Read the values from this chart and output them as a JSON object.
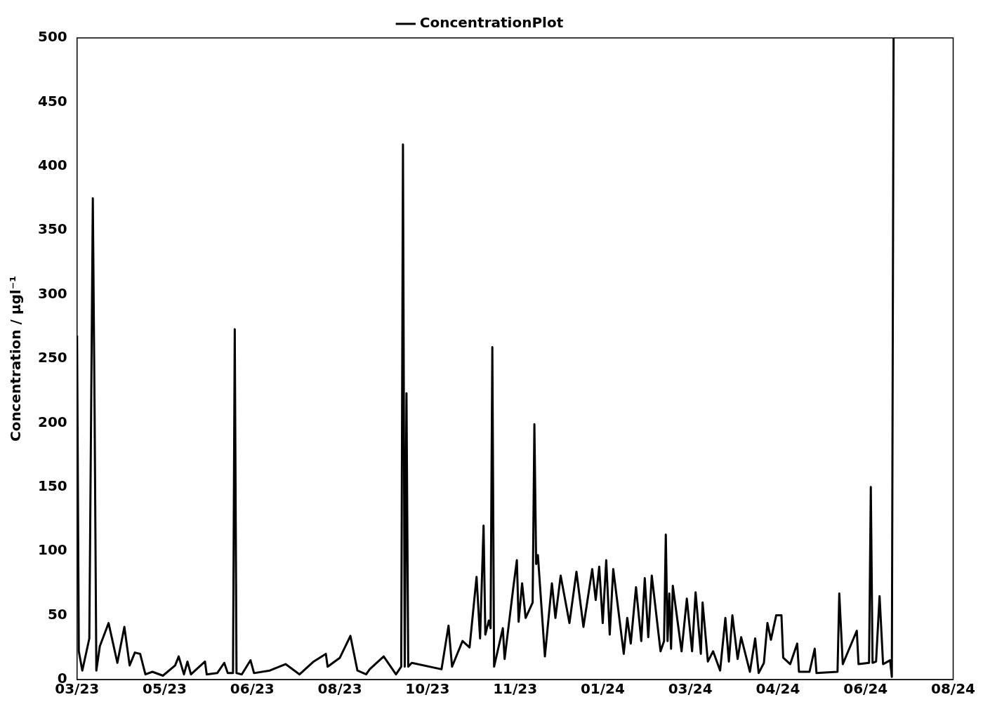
{
  "chart_data": {
    "type": "line",
    "ylabel": "Concentration / μgl⁻¹",
    "legend": "top",
    "grid": false,
    "marker": "none",
    "line_style": "solid",
    "ylim": [
      0,
      500
    ],
    "yticks": [
      0,
      50,
      100,
      150,
      200,
      250,
      300,
      350,
      400,
      450,
      500
    ],
    "xlim": [
      "2023-03-20",
      "2024-08-01"
    ],
    "xticks": [
      {
        "value": "2023-03-20",
        "label": "03/23"
      },
      {
        "value": "2023-05-09",
        "label": "05/23"
      },
      {
        "value": "2023-06-28",
        "label": "06/23"
      },
      {
        "value": "2023-08-17",
        "label": "08/23"
      },
      {
        "value": "2023-10-06",
        "label": "10/23"
      },
      {
        "value": "2023-11-25",
        "label": "11/23"
      },
      {
        "value": "2024-01-14",
        "label": "01/24"
      },
      {
        "value": "2024-03-04",
        "label": "03/24"
      },
      {
        "value": "2024-04-23",
        "label": "04/24"
      },
      {
        "value": "2024-06-12",
        "label": "06/24"
      },
      {
        "value": "2024-08-01",
        "label": "08/24"
      }
    ],
    "x": [
      "2023-03-20",
      "2023-03-21",
      "2023-03-23",
      "2023-03-27",
      "2023-03-29",
      "2023-03-30",
      "2023-03-31",
      "2023-04-02",
      "2023-04-07",
      "2023-04-12",
      "2023-04-16",
      "2023-04-19",
      "2023-04-22",
      "2023-04-25",
      "2023-04-28",
      "2023-05-02",
      "2023-05-08",
      "2023-05-15",
      "2023-05-17",
      "2023-05-20",
      "2023-05-22",
      "2023-05-24",
      "2023-06-01",
      "2023-06-02",
      "2023-06-08",
      "2023-06-12",
      "2023-06-14",
      "2023-06-17",
      "2023-06-18",
      "2023-06-19",
      "2023-06-22",
      "2023-06-27",
      "2023-06-29",
      "2023-07-08",
      "2023-07-17",
      "2023-07-25",
      "2023-08-02",
      "2023-08-09",
      "2023-08-10",
      "2023-08-17",
      "2023-08-23",
      "2023-08-27",
      "2023-09-01",
      "2023-09-03",
      "2023-09-11",
      "2023-09-18",
      "2023-09-21",
      "2023-09-22",
      "2023-09-23",
      "2023-09-24",
      "2023-09-25",
      "2023-09-27",
      "2023-10-14",
      "2023-10-18",
      "2023-10-20",
      "2023-10-26",
      "2023-10-30",
      "2023-11-03",
      "2023-11-05",
      "2023-11-07",
      "2023-11-08",
      "2023-11-10",
      "2023-11-11",
      "2023-11-12",
      "2023-11-13",
      "2023-11-18",
      "2023-11-19",
      "2023-11-24",
      "2023-11-26",
      "2023-11-27",
      "2023-11-29",
      "2023-12-01",
      "2023-12-05",
      "2023-12-06",
      "2023-12-07",
      "2023-12-08",
      "2023-12-12",
      "2023-12-16",
      "2023-12-18",
      "2023-12-21",
      "2023-12-26",
      "2023-12-30",
      "2024-01-03",
      "2024-01-08",
      "2024-01-10",
      "2024-01-12",
      "2024-01-14",
      "2024-01-16",
      "2024-01-18",
      "2024-01-20",
      "2024-01-26",
      "2024-01-28",
      "2024-01-30",
      "2024-02-02",
      "2024-02-05",
      "2024-02-07",
      "2024-02-09",
      "2024-02-11",
      "2024-02-16",
      "2024-02-18",
      "2024-02-19",
      "2024-02-20",
      "2024-02-21",
      "2024-02-22",
      "2024-02-23",
      "2024-02-28",
      "2024-03-02",
      "2024-03-05",
      "2024-03-07",
      "2024-03-10",
      "2024-03-11",
      "2024-03-14",
      "2024-03-17",
      "2024-03-21",
      "2024-03-24",
      "2024-03-26",
      "2024-03-28",
      "2024-03-31",
      "2024-04-02",
      "2024-04-07",
      "2024-04-10",
      "2024-04-12",
      "2024-04-15",
      "2024-04-17",
      "2024-04-19",
      "2024-04-22",
      "2024-04-25",
      "2024-04-26",
      "2024-04-30",
      "2024-05-04",
      "2024-05-05",
      "2024-05-11",
      "2024-05-14",
      "2024-05-15",
      "2024-05-27",
      "2024-05-28",
      "2024-05-30",
      "2024-06-07",
      "2024-06-08",
      "2024-06-14",
      "2024-06-15",
      "2024-06-16",
      "2024-06-18",
      "2024-06-20",
      "2024-06-22",
      "2024-06-26",
      "2024-06-27",
      "2024-06-28"
    ],
    "series": [
      {
        "name": "ConcentrationPlot",
        "color": "#000000",
        "values": [
          268,
          22,
          7,
          32,
          375,
          212,
          7,
          26,
          44,
          13,
          41,
          11,
          21,
          20,
          4,
          6,
          3,
          11,
          18,
          4,
          14,
          4,
          14,
          4,
          5,
          13,
          5,
          5,
          273,
          5,
          4,
          15,
          5,
          7,
          12,
          4,
          14,
          20,
          10,
          17,
          34,
          7,
          4,
          8,
          18,
          4,
          10,
          417,
          10,
          223,
          10,
          13,
          8,
          42,
          10,
          30,
          25,
          80,
          32,
          120,
          35,
          46,
          40,
          259,
          10,
          40,
          16,
          72,
          93,
          45,
          75,
          48,
          60,
          199,
          90,
          97,
          18,
          75,
          48,
          81,
          44,
          84,
          41,
          86,
          62,
          88,
          44,
          93,
          35,
          86,
          20,
          48,
          28,
          72,
          30,
          79,
          33,
          81,
          22,
          30,
          113,
          30,
          67,
          24,
          73,
          22,
          63,
          22,
          68,
          20,
          60,
          14,
          22,
          7,
          48,
          14,
          50,
          16,
          33,
          6,
          32,
          5,
          13,
          44,
          31,
          50,
          50,
          17,
          12,
          28,
          6,
          6,
          24,
          5,
          6,
          67,
          12,
          38,
          12,
          13,
          150,
          13,
          14,
          65,
          12,
          15,
          2,
          500
        ]
      }
    ]
  }
}
